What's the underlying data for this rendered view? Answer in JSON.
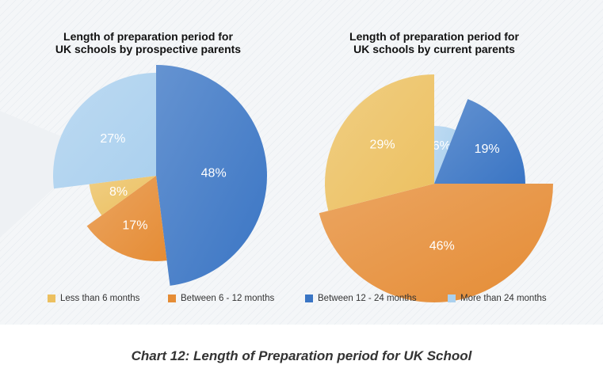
{
  "caption": "Chart 12: Length of Preparation period for UK School",
  "colors": {
    "less_than_6": "#ecc060",
    "between_6_12": "#e58c35",
    "between_12_24": "#3a75c4",
    "more_than_24": "#aad0ee"
  },
  "chart_data": [
    {
      "type": "pie",
      "title": "Length of preparation period for UK schools by prospective parents",
      "title_lines": [
        "Length of preparation period for",
        "UK schools by prospective parents"
      ],
      "slices": [
        {
          "label": "Between 12 - 24 months",
          "value": 48,
          "display": "48%"
        },
        {
          "label": "Between 6 - 12 months",
          "value": 17,
          "display": "17%"
        },
        {
          "label": "Less than 6 months",
          "value": 8,
          "display": "8%"
        },
        {
          "label": "More than 24 months",
          "value": 27,
          "display": "27%"
        }
      ]
    },
    {
      "type": "pie",
      "title": "Length of preparation period for UK schools by current parents",
      "title_lines": [
        "Length of preparation period for",
        "UK schools by current parents"
      ],
      "slices": [
        {
          "label": "More than 24 months",
          "value": 6,
          "display": "6%"
        },
        {
          "label": "Between 12 - 24 months",
          "value": 19,
          "display": "19%"
        },
        {
          "label": "Between 6 - 12 months",
          "value": 46,
          "display": "46%"
        },
        {
          "label": "Less than 6 months",
          "value": 29,
          "display": "29%"
        }
      ]
    }
  ],
  "legend": [
    {
      "label": "Less than 6 months",
      "color": "#ecc060"
    },
    {
      "label": "Between 6 - 12 months",
      "color": "#e58c35"
    },
    {
      "label": "Between 12 - 24 months",
      "color": "#3a75c4"
    },
    {
      "label": "More than 24 months",
      "color": "#aad0ee"
    }
  ]
}
